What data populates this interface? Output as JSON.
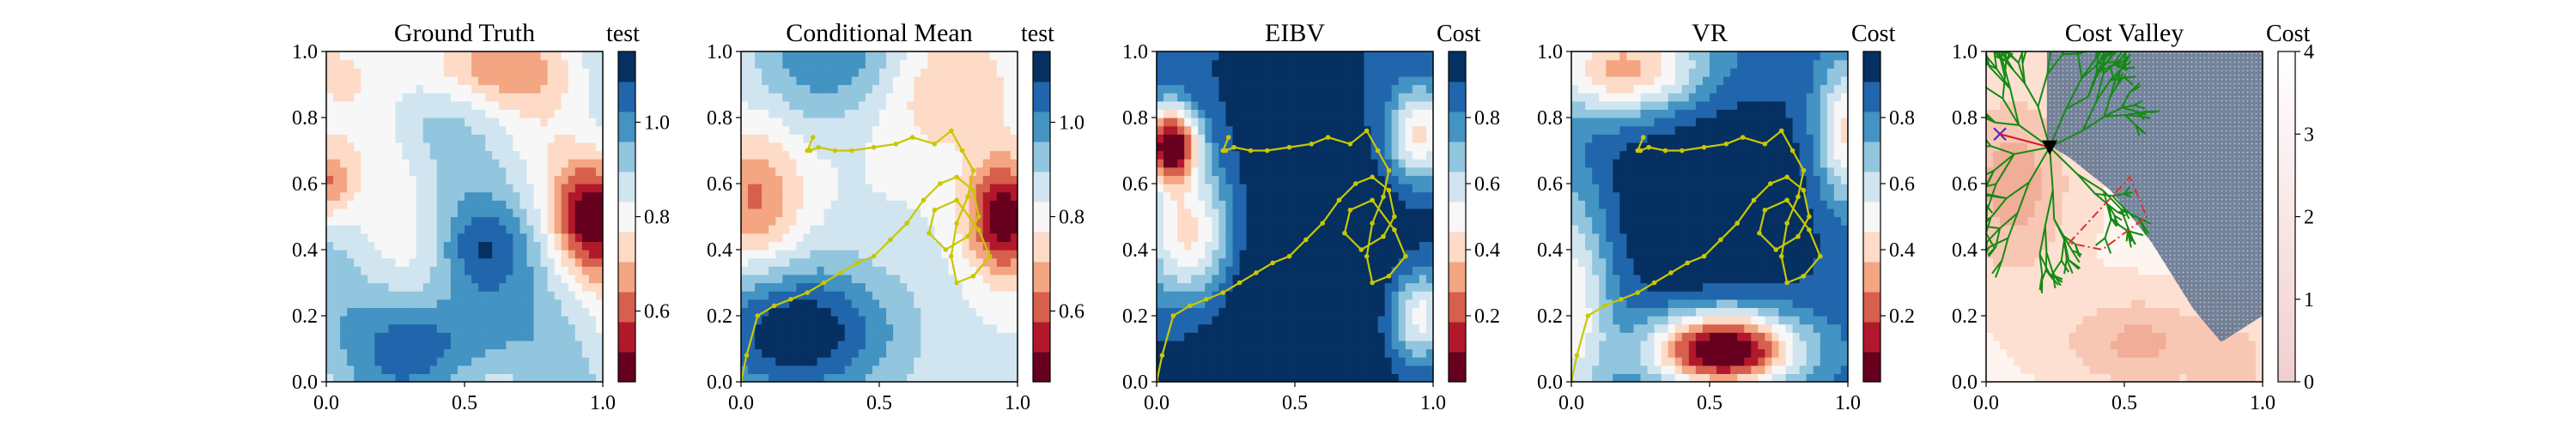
{
  "chart_data": [
    {
      "type": "heatmap",
      "title": "Ground Truth",
      "colorbar_label": "test",
      "colorbar_ticks": [
        0.6,
        0.8,
        1.0
      ],
      "colorbar_range": [
        0.45,
        1.15
      ],
      "xlim": [
        0,
        1
      ],
      "ylim": [
        0,
        1
      ],
      "xticks": [
        0.0,
        0.5,
        1.0
      ],
      "yticks": [
        0.0,
        0.2,
        0.4,
        0.6,
        0.8,
        1.0
      ],
      "colormap": "RdBu",
      "path": []
    },
    {
      "type": "heatmap",
      "title": "Conditional Mean",
      "colorbar_label": "test",
      "colorbar_ticks": [
        0.6,
        0.8,
        1.0
      ],
      "colorbar_range": [
        0.45,
        1.15
      ],
      "xlim": [
        0,
        1
      ],
      "ylim": [
        0,
        1
      ],
      "xticks": [
        0.0,
        0.5,
        1.0
      ],
      "yticks": [
        0.0,
        0.2,
        0.4,
        0.6,
        0.8,
        1.0
      ],
      "colormap": "RdBu",
      "path": [
        [
          0.0,
          0.0
        ],
        [
          0.02,
          0.08
        ],
        [
          0.06,
          0.2
        ],
        [
          0.12,
          0.23
        ],
        [
          0.18,
          0.25
        ],
        [
          0.24,
          0.27
        ],
        [
          0.3,
          0.3
        ],
        [
          0.36,
          0.33
        ],
        [
          0.42,
          0.36
        ],
        [
          0.48,
          0.38
        ],
        [
          0.54,
          0.43
        ],
        [
          0.6,
          0.48
        ],
        [
          0.66,
          0.55
        ],
        [
          0.72,
          0.6
        ],
        [
          0.78,
          0.62
        ],
        [
          0.84,
          0.58
        ],
        [
          0.86,
          0.5
        ],
        [
          0.82,
          0.44
        ],
        [
          0.74,
          0.4
        ],
        [
          0.68,
          0.45
        ],
        [
          0.7,
          0.52
        ],
        [
          0.78,
          0.55
        ],
        [
          0.86,
          0.46
        ],
        [
          0.9,
          0.38
        ],
        [
          0.84,
          0.32
        ],
        [
          0.78,
          0.3
        ],
        [
          0.76,
          0.38
        ],
        [
          0.78,
          0.48
        ],
        [
          0.82,
          0.56
        ],
        [
          0.84,
          0.64
        ],
        [
          0.8,
          0.7
        ],
        [
          0.76,
          0.76
        ],
        [
          0.7,
          0.72
        ],
        [
          0.62,
          0.74
        ],
        [
          0.56,
          0.72
        ],
        [
          0.48,
          0.71
        ],
        [
          0.4,
          0.7
        ],
        [
          0.34,
          0.7
        ],
        [
          0.28,
          0.71
        ],
        [
          0.25,
          0.7
        ],
        [
          0.24,
          0.7
        ],
        [
          0.26,
          0.74
        ]
      ],
      "path_color": "#c8c800"
    },
    {
      "type": "heatmap",
      "title": "EIBV",
      "colorbar_label": "Cost",
      "colorbar_ticks": [
        0.2,
        0.4,
        0.6,
        0.8
      ],
      "colorbar_range": [
        0.0,
        1.0
      ],
      "xlim": [
        0,
        1
      ],
      "ylim": [
        0,
        1
      ],
      "xticks": [
        0.0,
        0.5,
        1.0
      ],
      "yticks": [
        0.0,
        0.2,
        0.4,
        0.6,
        0.8,
        1.0
      ],
      "colormap": "RdBu",
      "path": [
        [
          0.0,
          0.0
        ],
        [
          0.02,
          0.08
        ],
        [
          0.06,
          0.2
        ],
        [
          0.12,
          0.23
        ],
        [
          0.18,
          0.25
        ],
        [
          0.24,
          0.27
        ],
        [
          0.3,
          0.3
        ],
        [
          0.36,
          0.33
        ],
        [
          0.42,
          0.36
        ],
        [
          0.48,
          0.38
        ],
        [
          0.54,
          0.43
        ],
        [
          0.6,
          0.48
        ],
        [
          0.66,
          0.55
        ],
        [
          0.72,
          0.6
        ],
        [
          0.78,
          0.62
        ],
        [
          0.84,
          0.58
        ],
        [
          0.86,
          0.5
        ],
        [
          0.82,
          0.44
        ],
        [
          0.74,
          0.4
        ],
        [
          0.68,
          0.45
        ],
        [
          0.7,
          0.52
        ],
        [
          0.78,
          0.55
        ],
        [
          0.86,
          0.46
        ],
        [
          0.9,
          0.38
        ],
        [
          0.84,
          0.32
        ],
        [
          0.78,
          0.3
        ],
        [
          0.76,
          0.38
        ],
        [
          0.78,
          0.48
        ],
        [
          0.82,
          0.56
        ],
        [
          0.84,
          0.64
        ],
        [
          0.8,
          0.7
        ],
        [
          0.76,
          0.76
        ],
        [
          0.7,
          0.72
        ],
        [
          0.62,
          0.74
        ],
        [
          0.56,
          0.72
        ],
        [
          0.48,
          0.71
        ],
        [
          0.4,
          0.7
        ],
        [
          0.34,
          0.7
        ],
        [
          0.28,
          0.71
        ],
        [
          0.25,
          0.7
        ],
        [
          0.24,
          0.7
        ],
        [
          0.26,
          0.74
        ]
      ],
      "path_color": "#c8c800"
    },
    {
      "type": "heatmap",
      "title": "VR",
      "colorbar_label": "Cost",
      "colorbar_ticks": [
        0.2,
        0.4,
        0.6,
        0.8
      ],
      "colorbar_range": [
        0.0,
        1.0
      ],
      "xlim": [
        0,
        1
      ],
      "ylim": [
        0,
        1
      ],
      "xticks": [
        0.0,
        0.5,
        1.0
      ],
      "yticks": [
        0.0,
        0.2,
        0.4,
        0.6,
        0.8,
        1.0
      ],
      "colormap": "RdBu",
      "path": [
        [
          0.0,
          0.0
        ],
        [
          0.02,
          0.08
        ],
        [
          0.06,
          0.2
        ],
        [
          0.12,
          0.23
        ],
        [
          0.18,
          0.25
        ],
        [
          0.24,
          0.27
        ],
        [
          0.3,
          0.3
        ],
        [
          0.36,
          0.33
        ],
        [
          0.42,
          0.36
        ],
        [
          0.48,
          0.38
        ],
        [
          0.54,
          0.43
        ],
        [
          0.6,
          0.48
        ],
        [
          0.66,
          0.55
        ],
        [
          0.72,
          0.6
        ],
        [
          0.78,
          0.62
        ],
        [
          0.84,
          0.58
        ],
        [
          0.86,
          0.5
        ],
        [
          0.82,
          0.44
        ],
        [
          0.74,
          0.4
        ],
        [
          0.68,
          0.45
        ],
        [
          0.7,
          0.52
        ],
        [
          0.78,
          0.55
        ],
        [
          0.86,
          0.46
        ],
        [
          0.9,
          0.38
        ],
        [
          0.84,
          0.32
        ],
        [
          0.78,
          0.3
        ],
        [
          0.76,
          0.38
        ],
        [
          0.78,
          0.48
        ],
        [
          0.82,
          0.56
        ],
        [
          0.84,
          0.64
        ],
        [
          0.8,
          0.7
        ],
        [
          0.76,
          0.76
        ],
        [
          0.7,
          0.72
        ],
        [
          0.62,
          0.74
        ],
        [
          0.56,
          0.72
        ],
        [
          0.48,
          0.71
        ],
        [
          0.4,
          0.7
        ],
        [
          0.34,
          0.7
        ],
        [
          0.28,
          0.71
        ],
        [
          0.25,
          0.7
        ],
        [
          0.24,
          0.7
        ],
        [
          0.26,
          0.74
        ]
      ],
      "path_color": "#c8c800"
    },
    {
      "type": "heatmap",
      "title": "Cost Valley",
      "colorbar_label": "Cost",
      "colorbar_ticks": [
        0,
        1,
        2,
        3,
        4
      ],
      "colorbar_range": [
        0,
        4
      ],
      "xlim": [
        0,
        1
      ],
      "ylim": [
        0,
        1
      ],
      "xticks": [
        0.0,
        0.5,
        1.0
      ],
      "yticks": [
        0.0,
        0.2,
        0.4,
        0.6,
        0.8,
        1.0
      ],
      "colormap": "Reds_light",
      "start_marker": {
        "x": 0.05,
        "y": 0.75,
        "symbol": "x",
        "color": "#4a2bc8"
      },
      "current_marker": {
        "x": 0.23,
        "y": 0.71,
        "symbol": "triangle-down",
        "color": "#000000"
      },
      "obstacle_polygon": [
        [
          0.3,
          0.42
        ],
        [
          0.52,
          0.62
        ],
        [
          0.58,
          0.5
        ],
        [
          0.42,
          0.4
        ]
      ],
      "obstacle_color": "#e03030",
      "tree_color": "#138a13",
      "restricted_region_color": "#5a6f8c"
    }
  ]
}
